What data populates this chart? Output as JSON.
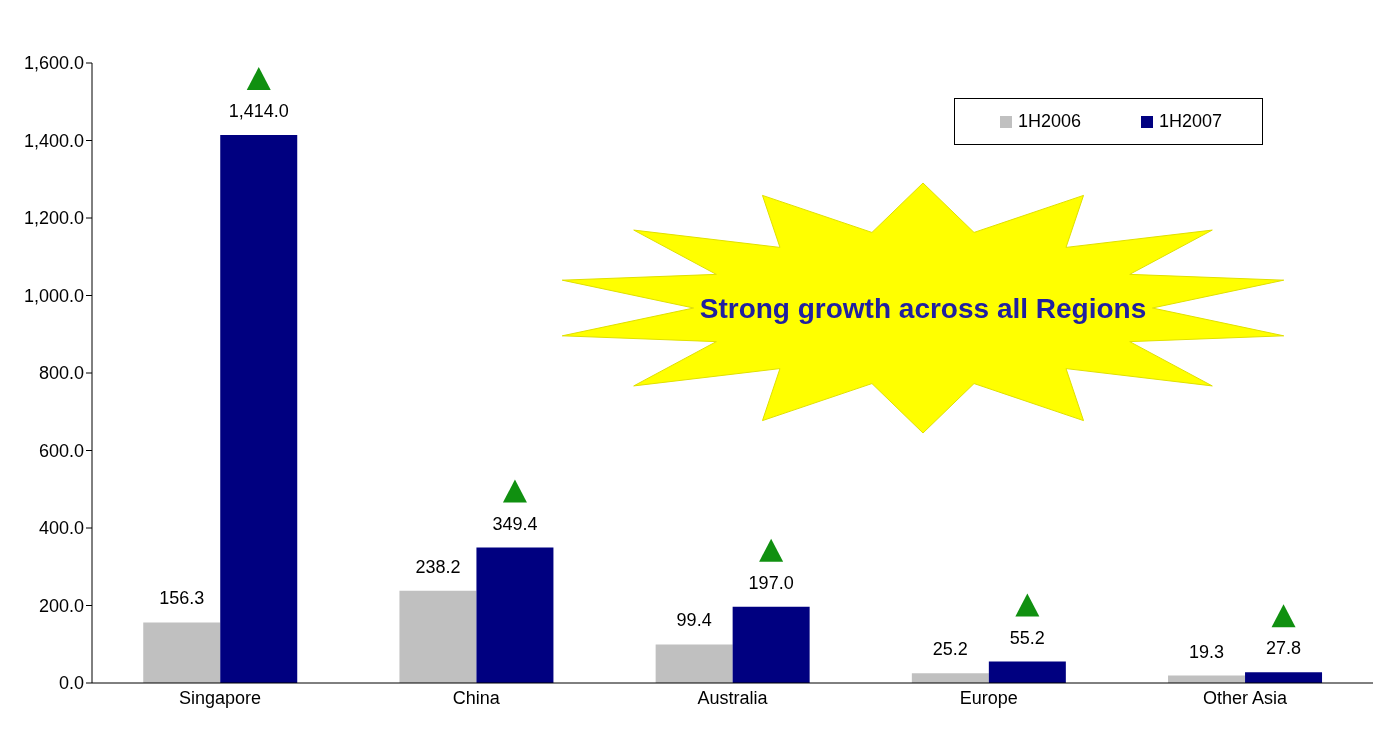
{
  "chart_data": {
    "type": "bar",
    "categories": [
      "Singapore",
      "China",
      "Australia",
      "Europe",
      "Other Asia"
    ],
    "series": [
      {
        "name": "1H2006",
        "color": "#c0c0c0",
        "values": [
          156.3,
          238.2,
          99.4,
          25.2,
          19.3
        ],
        "value_labels": [
          "156.3",
          "238.2",
          "99.4",
          "25.2",
          "19.3"
        ]
      },
      {
        "name": "1H2007",
        "color": "#000080",
        "values": [
          1414.0,
          349.4,
          197.0,
          55.2,
          27.8
        ],
        "value_labels": [
          "1,414.0",
          "349.4",
          "197.0",
          "55.2",
          "27.8"
        ]
      }
    ],
    "ylim": [
      0,
      1600
    ],
    "yticks": [
      {
        "value": 0,
        "label": "0.0"
      },
      {
        "value": 200,
        "label": "200.0"
      },
      {
        "value": 400,
        "label": "400.0"
      },
      {
        "value": 600,
        "label": "600.0"
      },
      {
        "value": 800,
        "label": "800.0"
      },
      {
        "value": 1000,
        "label": "1,000.0"
      },
      {
        "value": 1200,
        "label": "1,200.0"
      },
      {
        "value": 1400,
        "label": "1,400.0"
      },
      {
        "value": 1600,
        "label": "1,600.0"
      }
    ],
    "annotations": [
      "Strong growth across all Regions"
    ],
    "legend": "top right",
    "grid": false
  }
}
